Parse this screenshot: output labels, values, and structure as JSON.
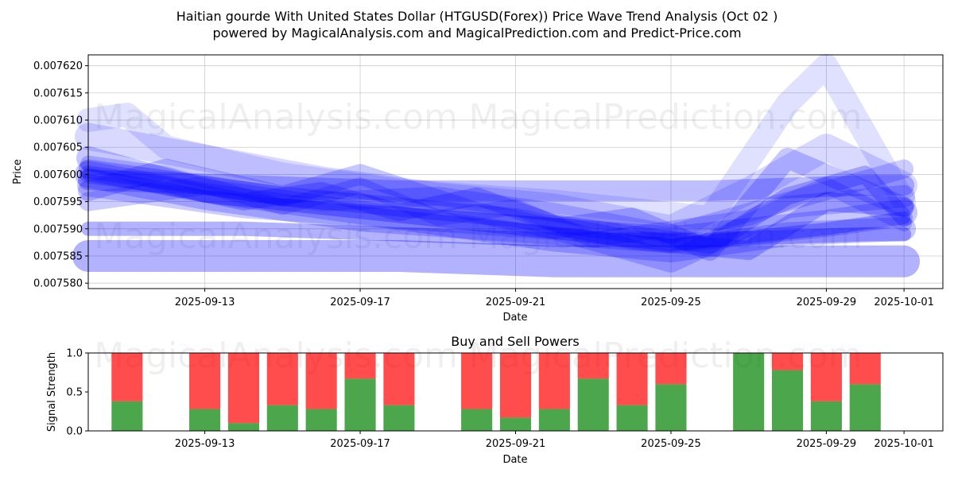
{
  "figure": {
    "title_line1": "Haitian gourde With United States Dollar (HTGUSD(Forex)) Price Wave Trend Analysis (Oct 02 )",
    "title_line2": "powered by MagicalAnalysis.com and MagicalPrediction.com and Predict-Price.com",
    "watermarks": [
      "MagicalAnalysis.com",
      "MagicalPrediction.com"
    ]
  },
  "colors": {
    "wave": "#0000ff",
    "sell": "#ff0000",
    "buy": "#008000",
    "grid": "#cccccc",
    "axis": "#000000"
  },
  "chart_data": [
    {
      "type": "line",
      "name": "price-wave-chart",
      "title": "",
      "xlabel": "Date",
      "ylabel": "Price",
      "x_range": [
        "2025-09-10",
        "2025-10-02"
      ],
      "ylim": [
        0.007579,
        0.007622
      ],
      "grid": true,
      "x_ticks": [
        "2025-09-13",
        "2025-09-17",
        "2025-09-21",
        "2025-09-25",
        "2025-09-29",
        "2025-10-01"
      ],
      "y_ticks": [
        0.00758,
        0.007585,
        0.00759,
        0.007595,
        0.0076,
        0.007605,
        0.00761,
        0.007615,
        0.00762
      ],
      "y_tick_labels": [
        "0.007580",
        "0.007585",
        "0.007590",
        "0.007595",
        "0.007600",
        "0.007605",
        "0.007610",
        "0.007615",
        "0.007620"
      ],
      "series": [
        {
          "name": "wave-01",
          "x": [
            "2025-09-10",
            "2025-09-13",
            "2025-09-17",
            "2025-09-21",
            "2025-09-25",
            "2025-09-29",
            "2025-10-01"
          ],
          "y": [
            0.0076,
            0.007596,
            0.007592,
            0.00759,
            0.007588,
            0.007591,
            0.007593
          ]
        },
        {
          "name": "wave-02",
          "x": [
            "2025-09-10",
            "2025-09-14",
            "2025-09-18",
            "2025-09-22",
            "2025-09-26",
            "2025-09-30",
            "2025-10-01"
          ],
          "y": [
            0.007599,
            0.007598,
            0.007597,
            0.007597,
            0.007597,
            0.007598,
            0.007598
          ]
        },
        {
          "name": "wave-03",
          "x": [
            "2025-09-10",
            "2025-09-13",
            "2025-09-16",
            "2025-09-19",
            "2025-09-22",
            "2025-09-25",
            "2025-09-28",
            "2025-10-01"
          ],
          "y": [
            0.007603,
            0.007597,
            0.007594,
            0.007591,
            0.007588,
            0.007586,
            0.007589,
            0.00759
          ]
        },
        {
          "name": "wave-04",
          "x": [
            "2025-09-10",
            "2025-09-12",
            "2025-09-15",
            "2025-09-18",
            "2025-09-21",
            "2025-09-24",
            "2025-09-27",
            "2025-09-29",
            "2025-10-01"
          ],
          "y": [
            0.007601,
            0.007599,
            0.007596,
            0.007594,
            0.007592,
            0.007588,
            0.007586,
            0.007595,
            0.007594
          ]
        },
        {
          "name": "wave-05",
          "x": [
            "2025-09-10",
            "2025-09-14",
            "2025-09-18",
            "2025-09-22",
            "2025-09-25",
            "2025-09-28",
            "2025-10-01"
          ],
          "y": [
            0.007598,
            0.007594,
            0.007592,
            0.00759,
            0.007584,
            0.007594,
            0.007596
          ]
        },
        {
          "name": "wave-06",
          "x": [
            "2025-09-10",
            "2025-09-12",
            "2025-09-14",
            "2025-09-16",
            "2025-09-18",
            "2025-09-20",
            "2025-09-22",
            "2025-09-24",
            "2025-09-26",
            "2025-09-28",
            "2025-09-30",
            "2025-10-01"
          ],
          "y": [
            0.0076,
            0.007598,
            0.007595,
            0.007597,
            0.007593,
            0.007596,
            0.007591,
            0.007589,
            0.007587,
            0.007596,
            0.0076,
            0.007592
          ]
        },
        {
          "name": "wave-07",
          "x": [
            "2025-09-10",
            "2025-09-12",
            "2025-09-15",
            "2025-09-17",
            "2025-09-19",
            "2025-09-21",
            "2025-09-23",
            "2025-09-25",
            "2025-09-27",
            "2025-09-29",
            "2025-10-01"
          ],
          "y": [
            0.007602,
            0.0076,
            0.007594,
            0.007598,
            0.007592,
            0.007594,
            0.007588,
            0.00759,
            0.007592,
            0.007598,
            0.007591
          ]
        },
        {
          "name": "wave-08",
          "x": [
            "2025-09-10",
            "2025-09-12",
            "2025-09-15",
            "2025-09-17",
            "2025-09-20",
            "2025-09-22",
            "2025-09-24",
            "2025-09-26",
            "2025-09-28",
            "2025-09-30",
            "2025-10-01"
          ],
          "y": [
            0.007597,
            0.007601,
            0.007596,
            0.0076,
            0.007593,
            0.00759,
            0.007592,
            0.007586,
            0.007603,
            0.007597,
            0.007594
          ]
        },
        {
          "name": "wave-09",
          "x": [
            "2025-09-10",
            "2025-09-11",
            "2025-09-12",
            "2025-09-15",
            "2025-09-18",
            "2025-09-22",
            "2025-09-26",
            "2025-09-28",
            "2025-09-29",
            "2025-10-01"
          ],
          "y": [
            0.00761,
            0.007611,
            0.007605,
            0.0076,
            0.007597,
            0.007595,
            0.007592,
            0.007613,
            0.00762,
            0.007595
          ]
        },
        {
          "name": "wave-10",
          "x": [
            "2025-09-10",
            "2025-09-13",
            "2025-09-16",
            "2025-09-19",
            "2025-09-22",
            "2025-09-25",
            "2025-09-27",
            "2025-09-29",
            "2025-10-01"
          ],
          "y": [
            0.007607,
            0.007603,
            0.007599,
            0.007596,
            0.007594,
            0.00759,
            0.007597,
            0.007605,
            0.007598
          ]
        },
        {
          "name": "wave-11",
          "x": [
            "2025-09-10",
            "2025-09-14",
            "2025-09-18",
            "2025-09-22",
            "2025-09-26",
            "2025-09-30",
            "2025-10-01"
          ],
          "y": [
            0.00759,
            0.00759,
            0.007589,
            0.007588,
            0.007588,
            0.007589,
            0.007589
          ]
        },
        {
          "name": "wave-12",
          "x": [
            "2025-09-10",
            "2025-09-14",
            "2025-09-18",
            "2025-09-22",
            "2025-09-26",
            "2025-09-30",
            "2025-10-01"
          ],
          "y": [
            0.007585,
            0.007585,
            0.007585,
            0.007584,
            0.007584,
            0.007584,
            0.007584
          ]
        },
        {
          "name": "wave-13",
          "x": [
            "2025-09-10",
            "2025-09-13",
            "2025-09-16",
            "2025-09-19",
            "2025-09-22",
            "2025-09-25",
            "2025-09-28",
            "2025-10-01"
          ],
          "y": [
            0.007595,
            0.007598,
            0.007595,
            0.007596,
            0.007593,
            0.007589,
            0.007595,
            0.007601
          ]
        },
        {
          "name": "wave-14",
          "x": [
            "2025-09-10",
            "2025-09-13",
            "2025-09-17",
            "2025-09-21",
            "2025-09-25",
            "2025-09-29",
            "2025-10-01"
          ],
          "y": [
            0.0076,
            0.007596,
            0.007593,
            0.00759,
            0.007587,
            0.00759,
            0.007592
          ]
        }
      ]
    },
    {
      "type": "bar",
      "name": "buy-sell-power-chart",
      "title": "Buy and Sell Powers",
      "xlabel": "Date",
      "ylabel": "Signal Strength",
      "ylim": [
        0,
        1
      ],
      "x_range": [
        "2025-09-10",
        "2025-10-02"
      ],
      "y_ticks": [
        0,
        0.5,
        1
      ],
      "y_tick_labels": [
        "0.0",
        "0.5",
        "1.0"
      ],
      "x_ticks": [
        "2025-09-13",
        "2025-09-17",
        "2025-09-21",
        "2025-09-25",
        "2025-09-29",
        "2025-10-01"
      ],
      "grid": false,
      "categories": [
        "2025-09-11",
        "2025-09-13",
        "2025-09-14",
        "2025-09-15",
        "2025-09-16",
        "2025-09-17",
        "2025-09-18",
        "2025-09-20",
        "2025-09-21",
        "2025-09-22",
        "2025-09-23",
        "2025-09-24",
        "2025-09-25",
        "2025-09-27",
        "2025-09-28",
        "2025-09-29",
        "2025-09-30"
      ],
      "series": [
        {
          "name": "Buy",
          "values": [
            0.38,
            0.28,
            0.1,
            0.33,
            0.28,
            0.67,
            0.33,
            0.28,
            0.17,
            0.28,
            0.67,
            0.33,
            0.6,
            1.0,
            0.78,
            0.38,
            0.6
          ]
        },
        {
          "name": "Sell",
          "values": [
            0.62,
            0.72,
            0.9,
            0.67,
            0.72,
            0.33,
            0.67,
            0.72,
            0.83,
            0.72,
            0.33,
            0.67,
            0.4,
            0.0,
            0.22,
            0.62,
            0.4
          ]
        }
      ]
    }
  ]
}
